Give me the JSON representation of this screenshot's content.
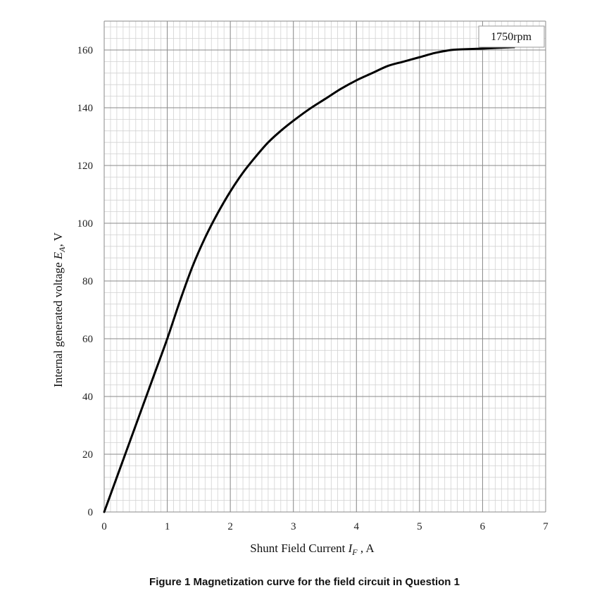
{
  "chart_data": {
    "type": "line",
    "title": "Figure 1 Magnetization curve for the field circuit in Question 1",
    "xlabel": {
      "main": "Shunt Field Current ",
      "var": "I",
      "sub": "F",
      "tail": " , A"
    },
    "ylabel": {
      "main": "Internal generated voltage ",
      "var": "E",
      "sub": "A",
      "tail": ", V"
    },
    "xlim": [
      0,
      7
    ],
    "ylim": [
      0,
      170
    ],
    "xticks": [
      0,
      1,
      2,
      3,
      4,
      5,
      6,
      7
    ],
    "yticks": [
      0,
      20,
      40,
      60,
      80,
      100,
      120,
      140,
      160
    ],
    "grid": {
      "major": true,
      "minor": true,
      "minor_per_major_x": 10,
      "minor_per_major_y": 5
    },
    "annotation": "1750rpm",
    "series": [
      {
        "name": "",
        "color": "#000000",
        "x": [
          0,
          0.2,
          0.4,
          0.6,
          0.8,
          1.0,
          1.2,
          1.4,
          1.6,
          1.8,
          2.0,
          2.2,
          2.4,
          2.6,
          2.8,
          3.0,
          3.25,
          3.5,
          3.75,
          4.0,
          4.25,
          4.5,
          4.75,
          5.0,
          5.25,
          5.5,
          5.65,
          6.0,
          6.5
        ],
        "y": [
          0,
          12,
          24,
          36,
          48,
          60,
          73,
          85,
          95,
          103.5,
          111,
          117.5,
          123,
          128,
          132,
          135.5,
          139.5,
          143,
          146.5,
          149.5,
          152,
          154.5,
          156,
          157.5,
          159,
          160,
          160.2,
          160.5,
          161
        ]
      }
    ]
  }
}
